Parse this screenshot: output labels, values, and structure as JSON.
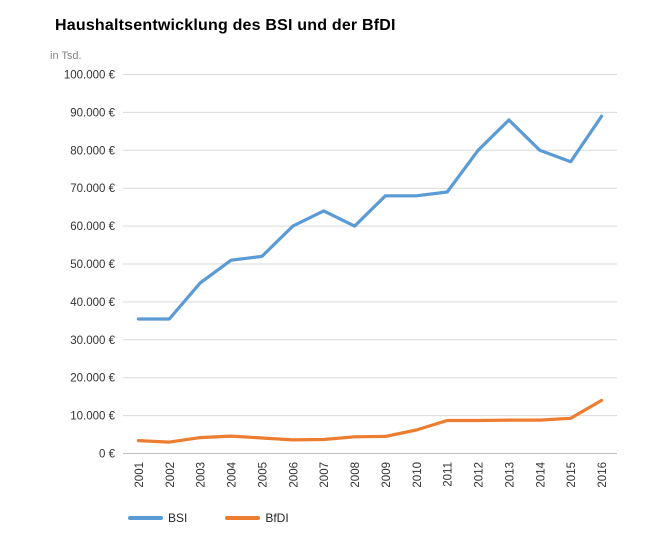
{
  "chart_data": {
    "type": "line",
    "title": "Haushaltsentwicklung des BSI und der BfDI",
    "unit_note": "in Tsd.",
    "categories": [
      "2001",
      "2002",
      "2003",
      "2004",
      "2005",
      "2006",
      "2007",
      "2008",
      "2009",
      "2010",
      "2011",
      "2012",
      "2013",
      "2014",
      "2015",
      "2016"
    ],
    "series": [
      {
        "name": "BSI",
        "color": "#5B9BD5",
        "values": [
          35500,
          35500,
          45000,
          51000,
          52000,
          60000,
          64000,
          60000,
          68000,
          68000,
          69000,
          80000,
          88000,
          80000,
          77000,
          89000
        ]
      },
      {
        "name": "BfDI",
        "color": "#ED7D31",
        "values": [
          3400,
          3000,
          4200,
          4600,
          4100,
          3600,
          3700,
          4400,
          4500,
          6200,
          8700,
          8700,
          8800,
          8800,
          9300,
          14000
        ]
      }
    ],
    "ylim": [
      0,
      100000
    ],
    "ytick_step": 10000,
    "y_tick_labels": [
      "0 €",
      "10.000 €",
      "20.000 €",
      "30.000 €",
      "40.000 €",
      "50.000 €",
      "60.000 €",
      "70.000 €",
      "80.000 €",
      "90.000 €",
      "100.000 €"
    ],
    "grid": "horizontal-only",
    "legend_position": "bottom-left",
    "colors": {
      "gridline": "#D9D9D9",
      "axis_line": "#BFBFBF",
      "tick_label": "#333333",
      "title": "#000000",
      "unit_note": "#848484"
    }
  }
}
